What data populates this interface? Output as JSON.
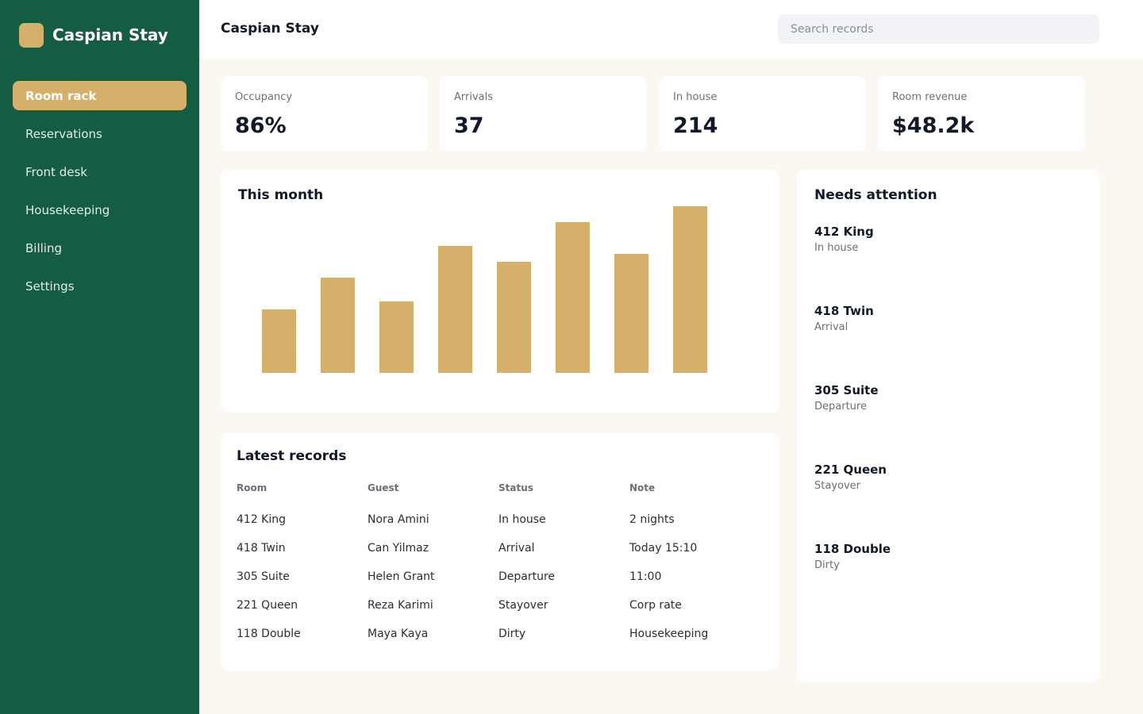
{
  "app": {
    "name": "Caspian Stay",
    "logo_color": "#d4b06a",
    "sidebar_color": "#145c42",
    "accent_color": "#d4b06a"
  },
  "sidebar": {
    "items": [
      {
        "label": "Room rack",
        "active": true
      },
      {
        "label": "Reservations",
        "active": false
      },
      {
        "label": "Front desk",
        "active": false
      },
      {
        "label": "Housekeeping",
        "active": false
      },
      {
        "label": "Billing",
        "active": false
      },
      {
        "label": "Settings",
        "active": false
      }
    ]
  },
  "header": {
    "title": "Caspian Stay",
    "search_placeholder": "Search records",
    "search_value": ""
  },
  "kpis": [
    {
      "label": "Occupancy",
      "value": "86%"
    },
    {
      "label": "Arrivals",
      "value": "37"
    },
    {
      "label": "In house",
      "value": "214"
    },
    {
      "label": "Room revenue",
      "value": "$48.2k"
    }
  ],
  "chart": {
    "title": "This month"
  },
  "chart_data": {
    "type": "bar",
    "title": "This month",
    "categories": [
      "",
      "",
      "",
      "",
      "",
      "",
      "",
      ""
    ],
    "values": [
      40,
      60,
      45,
      80,
      70,
      95,
      75,
      105
    ],
    "ylim": [
      0,
      105
    ],
    "grid": false,
    "bar_color": "#d4b06a"
  },
  "records": {
    "title": "Latest records",
    "columns": [
      "Room",
      "Guest",
      "Status",
      "Note"
    ],
    "rows": [
      [
        "412 King",
        "Nora Amini",
        "In house",
        "2 nights"
      ],
      [
        "418 Twin",
        "Can Yilmaz",
        "Arrival",
        "Today 15:10"
      ],
      [
        "305 Suite",
        "Helen Grant",
        "Departure",
        "11:00"
      ],
      [
        "221 Queen",
        "Reza Karimi",
        "Stayover",
        "Corp rate"
      ],
      [
        "118 Double",
        "Maya Kaya",
        "Dirty",
        "Housekeeping"
      ]
    ]
  },
  "attention": {
    "title": "Needs attention",
    "items": [
      {
        "name": "412 King",
        "status": "In house"
      },
      {
        "name": "418 Twin",
        "status": "Arrival"
      },
      {
        "name": "305 Suite",
        "status": "Departure"
      },
      {
        "name": "221 Queen",
        "status": "Stayover"
      },
      {
        "name": "118 Double",
        "status": "Dirty"
      }
    ]
  }
}
